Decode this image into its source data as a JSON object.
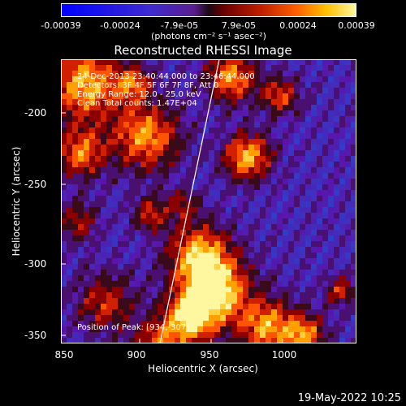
{
  "colorbar": {
    "ticks": [
      "-0.00039",
      "-0.00024",
      "-7.9e-05",
      "7.9e-05",
      "0.00024",
      "0.00039"
    ],
    "units": "(photons cm⁻² s⁻¹ asec⁻²)"
  },
  "title": "Reconstructed RHESSI Image",
  "annotations": {
    "time_range": "24-Dec-2013 23:40:44.000 to 23:46:44.000",
    "detectors": "Detectors: 3F 4F 5F 6F 7F 8F, Att 0",
    "energy": "Energy Range: 12.0 - 25.0 keV",
    "clean": "Clean    Total counts: 1.47E+04",
    "peak": "Position of Peak: [934,-307]"
  },
  "axes": {
    "xlabel": "Heliocentric X (arcsec)",
    "ylabel": "Heliocentric Y (arcsec)",
    "x_ticks": [
      "850",
      "900",
      "950",
      "1000"
    ],
    "y_ticks": [
      "-200",
      "-250",
      "-300",
      "-350"
    ]
  },
  "footer_date": "19-May-2022 10:25"
}
